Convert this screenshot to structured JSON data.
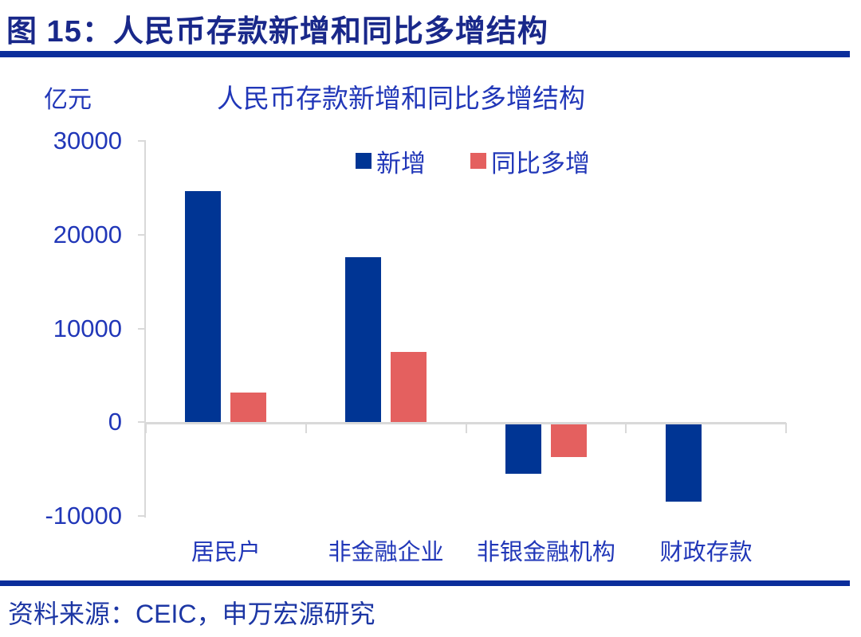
{
  "figure": {
    "header_title": "图 15：人民币存款新增和同比多增结构",
    "source": "资料来源：CEIC，申万宏源研究"
  },
  "colors": {
    "header_text": "#19288A",
    "rule_blue": "#0B2E9B",
    "chart_text": "#2137B8",
    "axis_gray": "#D9D9D9",
    "bar_new": "#003594",
    "bar_yoy": "#E4605F"
  },
  "chart_data": {
    "type": "bar",
    "title": "人民币存款新增和同比多增结构",
    "unit_label": "亿元",
    "categories": [
      "居民户",
      "非金融企业",
      "非银金融机构",
      "财政存款"
    ],
    "series": [
      {
        "name": "新增",
        "color": "#003594",
        "values": [
          24700,
          17700,
          -5300,
          -8200
        ]
      },
      {
        "name": "同比多增",
        "color": "#E4605F",
        "values": [
          3200,
          7600,
          -3500,
          0
        ]
      }
    ],
    "ylim": [
      -10000,
      30000
    ],
    "yticks": [
      30000,
      20000,
      10000,
      0,
      -10000
    ],
    "grid": false,
    "legend_position": "top-center"
  }
}
